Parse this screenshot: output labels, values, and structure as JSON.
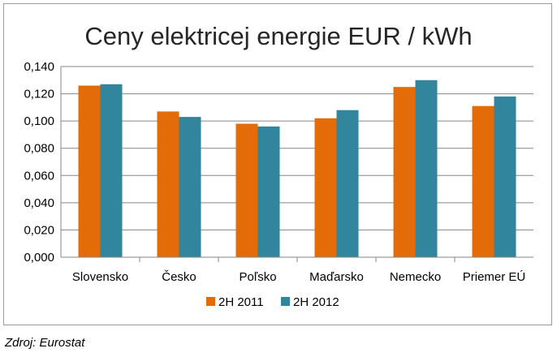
{
  "chart_data": {
    "type": "bar",
    "title": "Ceny elektricej energie EUR / kWh",
    "xlabel": "",
    "ylabel": "",
    "ylim": [
      0,
      0.14
    ],
    "yticks": [
      "0,000",
      "0,020",
      "0,040",
      "0,060",
      "0,080",
      "0,100",
      "0,120",
      "0,140"
    ],
    "categories": [
      "Slovensko",
      "Česko",
      "Poľsko",
      "Maďarsko",
      "Nemecko",
      "Priemer EÚ"
    ],
    "series": [
      {
        "name": "2H 2011",
        "values": [
          0.126,
          0.107,
          0.098,
          0.102,
          0.125,
          0.111
        ]
      },
      {
        "name": "2H 2012",
        "values": [
          0.127,
          0.103,
          0.096,
          0.108,
          0.13,
          0.118
        ]
      }
    ],
    "grid": true,
    "legend": "bottom"
  },
  "colors": {
    "series_0": "#E36C09",
    "series_1": "#31859C",
    "grid": "#868686",
    "axis": "#868686"
  },
  "source": "Zdroj: Eurostat"
}
